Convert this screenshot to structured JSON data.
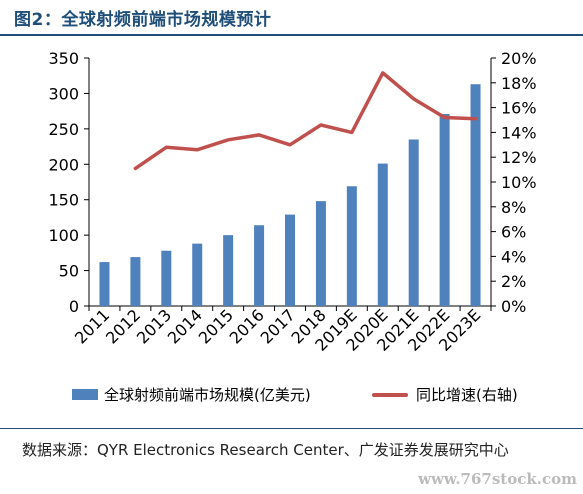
{
  "title": "图2：全球射频前端市场规模预计",
  "chart_data": {
    "type": "bar",
    "categories": [
      "2011",
      "2012",
      "2013",
      "2014",
      "2015",
      "2016",
      "2017",
      "2018",
      "2019E",
      "2020E",
      "2021E",
      "2022E",
      "2023E"
    ],
    "series": [
      {
        "name": "全球射频前端市场规模(亿美元)",
        "type": "bar",
        "axis": "left",
        "values": [
          62,
          69,
          78,
          88,
          100,
          114,
          129,
          148,
          169,
          201,
          235,
          271,
          313
        ]
      },
      {
        "name": "同比增速(右轴)",
        "type": "line",
        "axis": "right",
        "values": [
          null,
          0.111,
          0.128,
          0.126,
          0.134,
          0.138,
          0.13,
          0.146,
          0.14,
          0.188,
          0.167,
          0.152,
          0.151
        ]
      }
    ],
    "left_axis": {
      "ylim": [
        0,
        350
      ],
      "ticks": [
        0,
        50,
        100,
        150,
        200,
        250,
        300,
        350
      ],
      "tick_labels": [
        "0",
        "50",
        "100",
        "150",
        "200",
        "250",
        "300",
        "350"
      ]
    },
    "right_axis": {
      "ylim": [
        0,
        0.2
      ],
      "ticks": [
        0,
        0.02,
        0.04,
        0.06,
        0.08,
        0.1,
        0.12,
        0.14,
        0.16,
        0.18,
        0.2
      ],
      "tick_labels": [
        "0%",
        "2%",
        "4%",
        "6%",
        "8%",
        "10%",
        "12%",
        "14%",
        "16%",
        "18%",
        "20%"
      ]
    },
    "grid": false,
    "legend_position": "bottom",
    "colors": {
      "bar": "#4f81bd",
      "line": "#c0504d"
    }
  },
  "legend": {
    "bar_label": "全球射频前端市场规模(亿美元)",
    "line_label": "同比增速(右轴)"
  },
  "source_text": "数据来源：QYR Electronics Research Center、广发证券发展研究中心",
  "watermark": "www.767stock.com"
}
